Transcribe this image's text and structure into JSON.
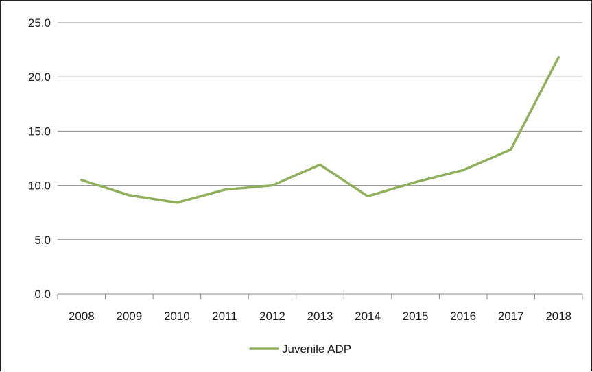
{
  "chart_data": {
    "type": "line",
    "title": "",
    "xlabel": "",
    "ylabel": "",
    "categories": [
      "2008",
      "2009",
      "2010",
      "2011",
      "2012",
      "2013",
      "2014",
      "2015",
      "2016",
      "2017",
      "2018"
    ],
    "series": [
      {
        "name": "Juvenile ADP",
        "color": "#8faf5a",
        "values": [
          10.5,
          9.1,
          8.4,
          9.6,
          10.0,
          11.9,
          9.0,
          10.3,
          11.4,
          13.3,
          21.8
        ]
      }
    ],
    "ylim": [
      0,
      25
    ],
    "yticks": [
      "0.0",
      "5.0",
      "10.0",
      "15.0",
      "20.0",
      "25.0"
    ],
    "grid": "horizontal",
    "legend": "bottom-center",
    "colors": {
      "gridline": "#8c8c8c",
      "axis": "#8c8c8c",
      "text": "#1a1a1a"
    }
  }
}
